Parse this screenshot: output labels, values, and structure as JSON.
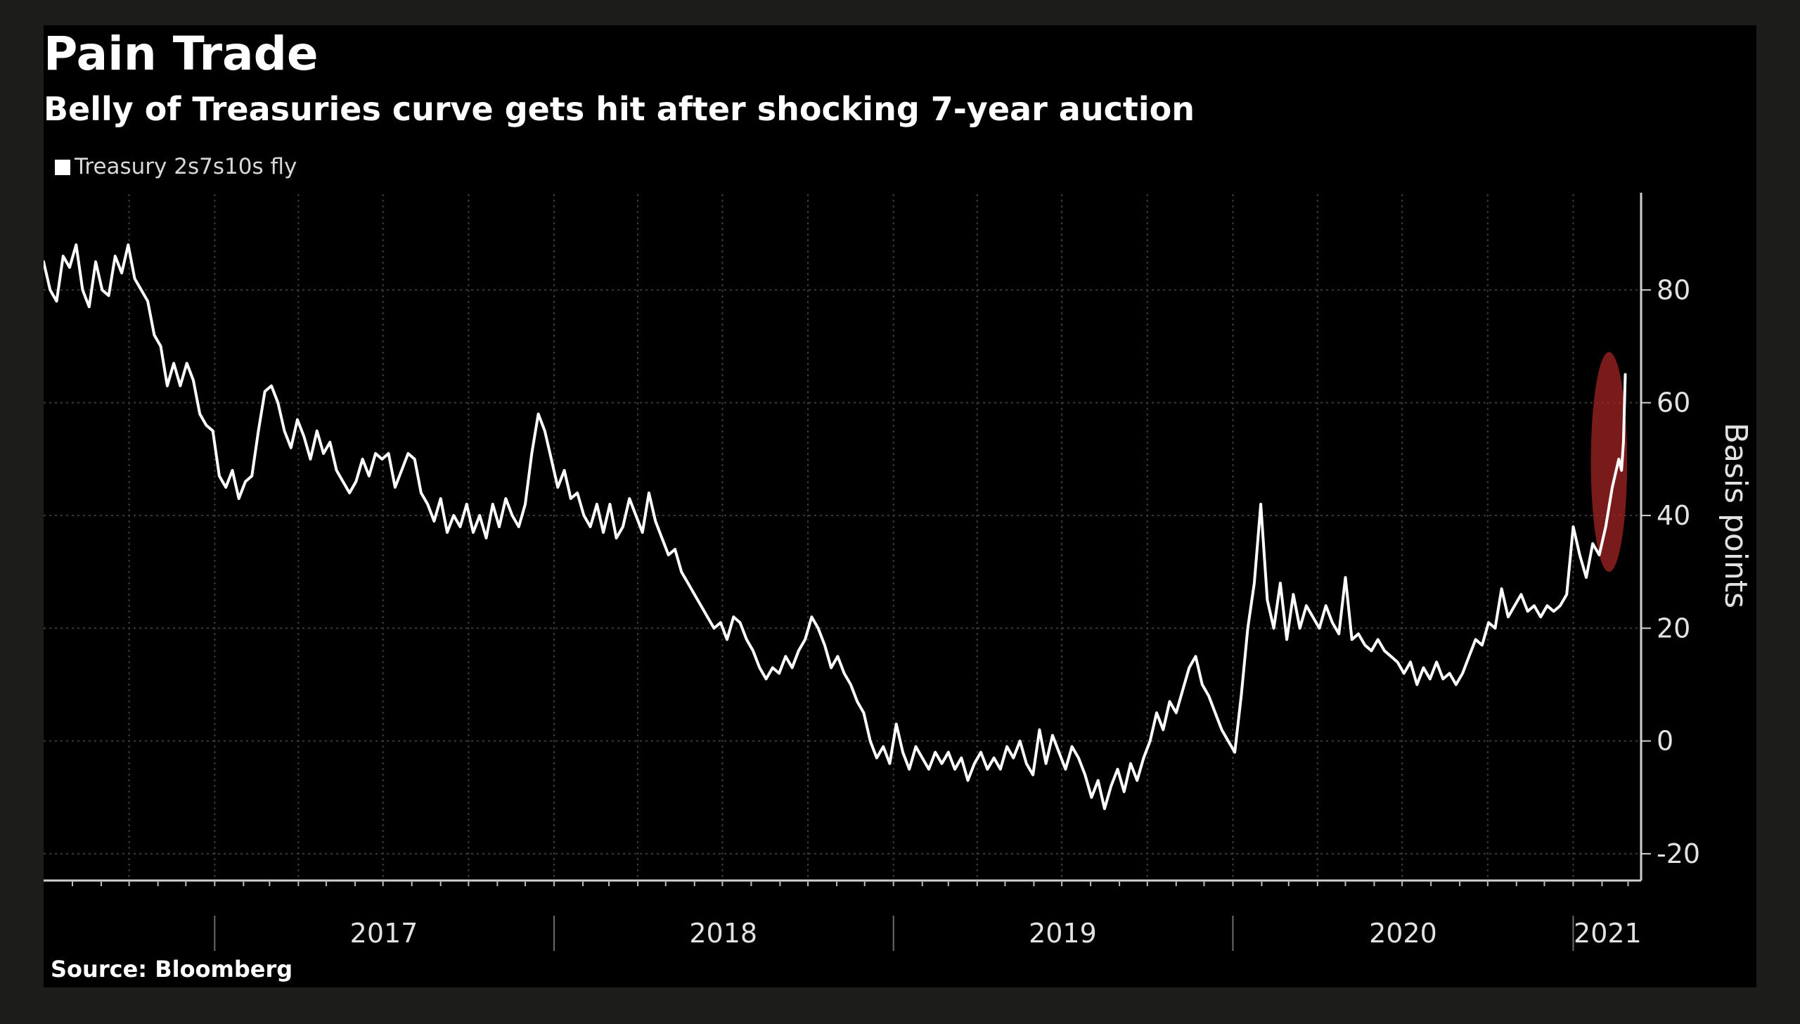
{
  "chart_data": {
    "type": "line",
    "title": "Pain Trade",
    "subtitle": "Belly of Treasuries curve gets hit after shocking 7-year auction",
    "ylabel": "Basis points",
    "source": "Source: Bloomberg",
    "ylim": [
      -25,
      97
    ],
    "xlim": [
      "2016-07-01",
      "2021-03-15"
    ],
    "y_ticks": [
      -20,
      0,
      20,
      40,
      60,
      80
    ],
    "y_tick_labels": [
      "-20",
      "0",
      "20",
      "40",
      "60",
      "80"
    ],
    "x_tick_labels": [
      "2017",
      "2018",
      "2019",
      "2020",
      "2021"
    ],
    "x_tick_dates": [
      "2017-01-01",
      "2018-01-01",
      "2019-01-01",
      "2020-01-01",
      "2021-01-01"
    ],
    "x_label_dates": [
      "2017-07-02",
      "2018-07-02",
      "2019-07-02",
      "2020-07-02",
      "2021-02-07"
    ],
    "grid": true,
    "legend_position": "top-left",
    "highlight": {
      "from": "2021-01-20",
      "to": "2021-02-28",
      "y_from": 30,
      "y_to": 69,
      "color": "#a32424"
    },
    "series": [
      {
        "name": "Treasury 2s7s10s fly",
        "color": "#ffffff",
        "points": [
          [
            "2016-07-01",
            85
          ],
          [
            "2016-07-08",
            80
          ],
          [
            "2016-07-15",
            78
          ],
          [
            "2016-07-22",
            86
          ],
          [
            "2016-07-29",
            84
          ],
          [
            "2016-08-05",
            88
          ],
          [
            "2016-08-12",
            80
          ],
          [
            "2016-08-19",
            77
          ],
          [
            "2016-08-26",
            85
          ],
          [
            "2016-09-02",
            80
          ],
          [
            "2016-09-09",
            79
          ],
          [
            "2016-09-16",
            86
          ],
          [
            "2016-09-23",
            83
          ],
          [
            "2016-09-30",
            88
          ],
          [
            "2016-10-07",
            82
          ],
          [
            "2016-10-14",
            80
          ],
          [
            "2016-10-21",
            78
          ],
          [
            "2016-10-28",
            72
          ],
          [
            "2016-11-04",
            70
          ],
          [
            "2016-11-11",
            63
          ],
          [
            "2016-11-18",
            67
          ],
          [
            "2016-11-25",
            63
          ],
          [
            "2016-12-02",
            67
          ],
          [
            "2016-12-09",
            64
          ],
          [
            "2016-12-16",
            58
          ],
          [
            "2016-12-23",
            56
          ],
          [
            "2016-12-30",
            55
          ],
          [
            "2017-01-06",
            47
          ],
          [
            "2017-01-13",
            45
          ],
          [
            "2017-01-20",
            48
          ],
          [
            "2017-01-27",
            43
          ],
          [
            "2017-02-03",
            46
          ],
          [
            "2017-02-10",
            47
          ],
          [
            "2017-02-17",
            55
          ],
          [
            "2017-02-24",
            62
          ],
          [
            "2017-03-03",
            63
          ],
          [
            "2017-03-10",
            60
          ],
          [
            "2017-03-17",
            55
          ],
          [
            "2017-03-24",
            52
          ],
          [
            "2017-03-31",
            57
          ],
          [
            "2017-04-07",
            54
          ],
          [
            "2017-04-14",
            50
          ],
          [
            "2017-04-21",
            55
          ],
          [
            "2017-04-28",
            51
          ],
          [
            "2017-05-05",
            53
          ],
          [
            "2017-05-12",
            48
          ],
          [
            "2017-05-19",
            46
          ],
          [
            "2017-05-26",
            44
          ],
          [
            "2017-06-02",
            46
          ],
          [
            "2017-06-09",
            50
          ],
          [
            "2017-06-16",
            47
          ],
          [
            "2017-06-23",
            51
          ],
          [
            "2017-06-30",
            50
          ],
          [
            "2017-07-07",
            51
          ],
          [
            "2017-07-14",
            45
          ],
          [
            "2017-07-21",
            48
          ],
          [
            "2017-07-28",
            51
          ],
          [
            "2017-08-04",
            50
          ],
          [
            "2017-08-11",
            44
          ],
          [
            "2017-08-18",
            42
          ],
          [
            "2017-08-25",
            39
          ],
          [
            "2017-09-01",
            43
          ],
          [
            "2017-09-08",
            37
          ],
          [
            "2017-09-15",
            40
          ],
          [
            "2017-09-22",
            38
          ],
          [
            "2017-09-29",
            42
          ],
          [
            "2017-10-06",
            37
          ],
          [
            "2017-10-13",
            40
          ],
          [
            "2017-10-20",
            36
          ],
          [
            "2017-10-27",
            42
          ],
          [
            "2017-11-03",
            38
          ],
          [
            "2017-11-10",
            43
          ],
          [
            "2017-11-17",
            40
          ],
          [
            "2017-11-24",
            38
          ],
          [
            "2017-12-01",
            42
          ],
          [
            "2017-12-08",
            51
          ],
          [
            "2017-12-15",
            58
          ],
          [
            "2017-12-22",
            55
          ],
          [
            "2017-12-29",
            50
          ],
          [
            "2018-01-05",
            45
          ],
          [
            "2018-01-12",
            48
          ],
          [
            "2018-01-19",
            43
          ],
          [
            "2018-01-26",
            44
          ],
          [
            "2018-02-02",
            40
          ],
          [
            "2018-02-09",
            38
          ],
          [
            "2018-02-16",
            42
          ],
          [
            "2018-02-23",
            37
          ],
          [
            "2018-03-02",
            42
          ],
          [
            "2018-03-09",
            36
          ],
          [
            "2018-03-16",
            38
          ],
          [
            "2018-03-23",
            43
          ],
          [
            "2018-03-30",
            40
          ],
          [
            "2018-04-06",
            37
          ],
          [
            "2018-04-13",
            44
          ],
          [
            "2018-04-20",
            39
          ],
          [
            "2018-04-27",
            36
          ],
          [
            "2018-05-04",
            33
          ],
          [
            "2018-05-11",
            34
          ],
          [
            "2018-05-18",
            30
          ],
          [
            "2018-05-25",
            28
          ],
          [
            "2018-06-01",
            26
          ],
          [
            "2018-06-08",
            24
          ],
          [
            "2018-06-15",
            22
          ],
          [
            "2018-06-22",
            20
          ],
          [
            "2018-06-29",
            21
          ],
          [
            "2018-07-06",
            18
          ],
          [
            "2018-07-13",
            22
          ],
          [
            "2018-07-20",
            21
          ],
          [
            "2018-07-27",
            18
          ],
          [
            "2018-08-03",
            16
          ],
          [
            "2018-08-10",
            13
          ],
          [
            "2018-08-17",
            11
          ],
          [
            "2018-08-24",
            13
          ],
          [
            "2018-08-31",
            12
          ],
          [
            "2018-09-07",
            15
          ],
          [
            "2018-09-14",
            13
          ],
          [
            "2018-09-21",
            16
          ],
          [
            "2018-09-28",
            18
          ],
          [
            "2018-10-05",
            22
          ],
          [
            "2018-10-12",
            20
          ],
          [
            "2018-10-19",
            17
          ],
          [
            "2018-10-26",
            13
          ],
          [
            "2018-11-02",
            15
          ],
          [
            "2018-11-09",
            12
          ],
          [
            "2018-11-16",
            10
          ],
          [
            "2018-11-23",
            7
          ],
          [
            "2018-11-30",
            5
          ],
          [
            "2018-12-07",
            0
          ],
          [
            "2018-12-14",
            -3
          ],
          [
            "2018-12-21",
            -1
          ],
          [
            "2018-12-28",
            -4
          ],
          [
            "2019-01-04",
            3
          ],
          [
            "2019-01-11",
            -2
          ],
          [
            "2019-01-18",
            -5
          ],
          [
            "2019-01-25",
            -1
          ],
          [
            "2019-02-01",
            -3
          ],
          [
            "2019-02-08",
            -5
          ],
          [
            "2019-02-15",
            -2
          ],
          [
            "2019-02-22",
            -4
          ],
          [
            "2019-03-01",
            -2
          ],
          [
            "2019-03-08",
            -5
          ],
          [
            "2019-03-15",
            -3
          ],
          [
            "2019-03-22",
            -7
          ],
          [
            "2019-03-29",
            -4
          ],
          [
            "2019-04-05",
            -2
          ],
          [
            "2019-04-12",
            -5
          ],
          [
            "2019-04-19",
            -3
          ],
          [
            "2019-04-26",
            -5
          ],
          [
            "2019-05-03",
            -1
          ],
          [
            "2019-05-10",
            -3
          ],
          [
            "2019-05-17",
            0
          ],
          [
            "2019-05-24",
            -4
          ],
          [
            "2019-05-31",
            -6
          ],
          [
            "2019-06-07",
            2
          ],
          [
            "2019-06-14",
            -4
          ],
          [
            "2019-06-21",
            1
          ],
          [
            "2019-06-28",
            -2
          ],
          [
            "2019-07-05",
            -5
          ],
          [
            "2019-07-12",
            -1
          ],
          [
            "2019-07-19",
            -3
          ],
          [
            "2019-07-26",
            -6
          ],
          [
            "2019-08-02",
            -10
          ],
          [
            "2019-08-09",
            -7
          ],
          [
            "2019-08-16",
            -12
          ],
          [
            "2019-08-23",
            -8
          ],
          [
            "2019-08-30",
            -5
          ],
          [
            "2019-09-06",
            -9
          ],
          [
            "2019-09-13",
            -4
          ],
          [
            "2019-09-20",
            -7
          ],
          [
            "2019-09-27",
            -3
          ],
          [
            "2019-10-04",
            0
          ],
          [
            "2019-10-11",
            5
          ],
          [
            "2019-10-18",
            2
          ],
          [
            "2019-10-25",
            7
          ],
          [
            "2019-11-01",
            5
          ],
          [
            "2019-11-08",
            9
          ],
          [
            "2019-11-15",
            13
          ],
          [
            "2019-11-22",
            15
          ],
          [
            "2019-11-29",
            10
          ],
          [
            "2019-12-06",
            8
          ],
          [
            "2019-12-13",
            5
          ],
          [
            "2019-12-20",
            2
          ],
          [
            "2019-12-27",
            0
          ],
          [
            "2020-01-03",
            -2
          ],
          [
            "2020-01-10",
            8
          ],
          [
            "2020-01-17",
            20
          ],
          [
            "2020-01-24",
            28
          ],
          [
            "2020-01-31",
            42
          ],
          [
            "2020-02-07",
            25
          ],
          [
            "2020-02-14",
            20
          ],
          [
            "2020-02-21",
            28
          ],
          [
            "2020-02-28",
            18
          ],
          [
            "2020-03-06",
            26
          ],
          [
            "2020-03-13",
            20
          ],
          [
            "2020-03-20",
            24
          ],
          [
            "2020-03-27",
            22
          ],
          [
            "2020-04-03",
            20
          ],
          [
            "2020-04-10",
            24
          ],
          [
            "2020-04-17",
            21
          ],
          [
            "2020-04-24",
            19
          ],
          [
            "2020-05-01",
            29
          ],
          [
            "2020-05-08",
            18
          ],
          [
            "2020-05-15",
            19
          ],
          [
            "2020-05-22",
            17
          ],
          [
            "2020-05-29",
            16
          ],
          [
            "2020-06-05",
            18
          ],
          [
            "2020-06-12",
            16
          ],
          [
            "2020-06-19",
            15
          ],
          [
            "2020-06-26",
            14
          ],
          [
            "2020-07-03",
            12
          ],
          [
            "2020-07-10",
            14
          ],
          [
            "2020-07-17",
            10
          ],
          [
            "2020-07-24",
            13
          ],
          [
            "2020-07-31",
            11
          ],
          [
            "2020-08-07",
            14
          ],
          [
            "2020-08-14",
            11
          ],
          [
            "2020-08-21",
            12
          ],
          [
            "2020-08-28",
            10
          ],
          [
            "2020-09-04",
            12
          ],
          [
            "2020-09-11",
            15
          ],
          [
            "2020-09-18",
            18
          ],
          [
            "2020-09-25",
            17
          ],
          [
            "2020-10-02",
            21
          ],
          [
            "2020-10-09",
            20
          ],
          [
            "2020-10-16",
            27
          ],
          [
            "2020-10-23",
            22
          ],
          [
            "2020-10-30",
            24
          ],
          [
            "2020-11-06",
            26
          ],
          [
            "2020-11-13",
            23
          ],
          [
            "2020-11-20",
            24
          ],
          [
            "2020-11-27",
            22
          ],
          [
            "2020-12-04",
            24
          ],
          [
            "2020-12-11",
            23
          ],
          [
            "2020-12-18",
            24
          ],
          [
            "2020-12-25",
            26
          ],
          [
            "2021-01-01",
            38
          ],
          [
            "2021-01-08",
            33
          ],
          [
            "2021-01-15",
            29
          ],
          [
            "2021-01-22",
            35
          ],
          [
            "2021-01-29",
            33
          ],
          [
            "2021-02-05",
            38
          ],
          [
            "2021-02-12",
            45
          ],
          [
            "2021-02-19",
            50
          ],
          [
            "2021-02-22",
            48
          ],
          [
            "2021-02-24",
            53
          ],
          [
            "2021-02-26",
            65
          ]
        ]
      }
    ]
  }
}
